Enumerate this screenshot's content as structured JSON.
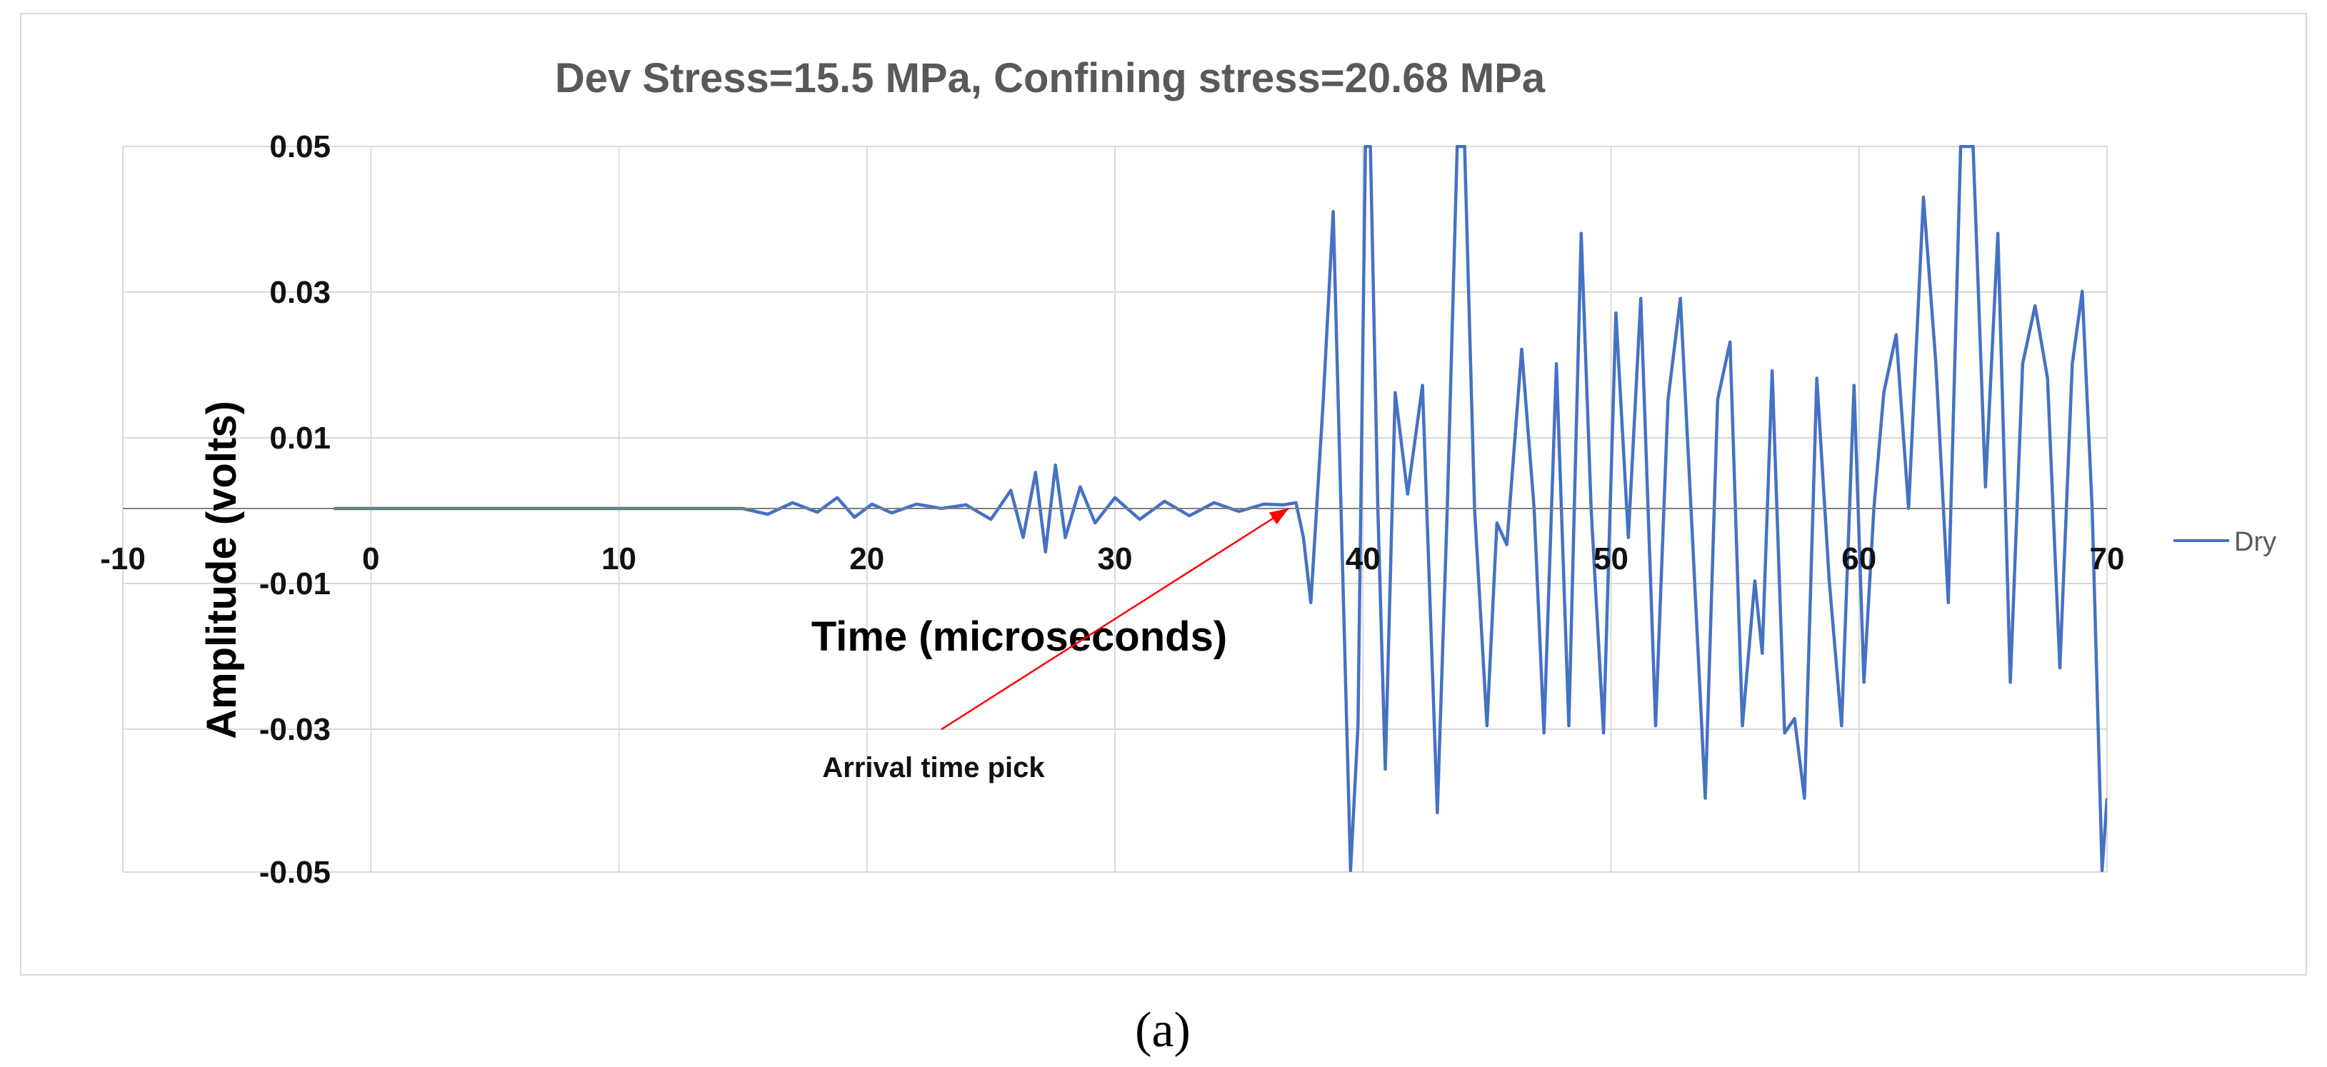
{
  "chart_data": {
    "type": "line",
    "title": "Dev Stress=15.5 MPa, Confining stress=20.68 MPa",
    "xlabel": "Time (microseconds)",
    "ylabel": "Amplitude (volts)",
    "xlim": [
      -10,
      70
    ],
    "ylim": [
      -0.05,
      0.05
    ],
    "x_ticks": [
      -10,
      0,
      10,
      20,
      30,
      40,
      50,
      60,
      70
    ],
    "x_tick_labels": [
      "-10",
      "0",
      "10",
      "20",
      "30",
      "40",
      "50",
      "60",
      "70"
    ],
    "y_ticks": [
      0.05,
      0.03,
      0.01,
      -0.01,
      -0.03,
      -0.05
    ],
    "y_tick_labels": [
      "0.05",
      "0.03",
      "0.01",
      "-0.01",
      "-0.03",
      "-0.05"
    ],
    "grid": true,
    "legend_position": "right",
    "series": [
      {
        "name": "Dry",
        "color": "#4472C4",
        "points": [
          [
            -1.5,
            0.0
          ],
          [
            15.0,
            0.0
          ],
          [
            16.0,
            -0.0008
          ],
          [
            17.0,
            0.0008
          ],
          [
            18.0,
            -0.0005
          ],
          [
            18.8,
            0.0015
          ],
          [
            19.5,
            -0.0012
          ],
          [
            20.2,
            0.0006
          ],
          [
            21.0,
            -0.0006
          ],
          [
            22.0,
            0.0006
          ],
          [
            23.0,
            0.0
          ],
          [
            24.0,
            0.0005
          ],
          [
            25.0,
            -0.0015
          ],
          [
            25.8,
            0.0025
          ],
          [
            26.3,
            -0.004
          ],
          [
            26.8,
            0.005
          ],
          [
            27.2,
            -0.006
          ],
          [
            27.6,
            0.006
          ],
          [
            28.0,
            -0.004
          ],
          [
            28.6,
            0.003
          ],
          [
            29.2,
            -0.002
          ],
          [
            30.0,
            0.0015
          ],
          [
            31.0,
            -0.0015
          ],
          [
            32.0,
            0.001
          ],
          [
            33.0,
            -0.001
          ],
          [
            34.0,
            0.0008
          ],
          [
            35.0,
            -0.0004
          ],
          [
            36.0,
            0.0006
          ],
          [
            36.8,
            0.0005
          ],
          [
            37.3,
            0.0008
          ],
          [
            37.6,
            -0.004
          ],
          [
            37.9,
            -0.013
          ],
          [
            38.4,
            0.015
          ],
          [
            38.8,
            0.041
          ],
          [
            39.1,
            0.002
          ],
          [
            39.5,
            -0.05
          ],
          [
            39.8,
            -0.03
          ],
          [
            40.1,
            0.05
          ],
          [
            40.3,
            0.05
          ],
          [
            40.6,
            0.0
          ],
          [
            40.9,
            -0.036
          ],
          [
            41.3,
            0.016
          ],
          [
            41.8,
            0.002
          ],
          [
            42.4,
            0.017
          ],
          [
            43.0,
            -0.042
          ],
          [
            43.4,
            0.0
          ],
          [
            43.8,
            0.05
          ],
          [
            44.1,
            0.05
          ],
          [
            44.5,
            0.0
          ],
          [
            45.0,
            -0.03
          ],
          [
            45.4,
            -0.002
          ],
          [
            45.8,
            -0.005
          ],
          [
            46.4,
            0.022
          ],
          [
            46.9,
            0.0
          ],
          [
            47.3,
            -0.031
          ],
          [
            47.8,
            0.02
          ],
          [
            48.3,
            -0.03
          ],
          [
            48.8,
            0.038
          ],
          [
            49.2,
            0.0
          ],
          [
            49.7,
            -0.031
          ],
          [
            50.2,
            0.027
          ],
          [
            50.7,
            -0.004
          ],
          [
            51.2,
            0.029
          ],
          [
            51.8,
            -0.03
          ],
          [
            52.3,
            0.015
          ],
          [
            52.8,
            0.029
          ],
          [
            53.3,
            -0.005
          ],
          [
            53.8,
            -0.04
          ],
          [
            54.3,
            0.015
          ],
          [
            54.8,
            0.023
          ],
          [
            55.3,
            -0.03
          ],
          [
            55.8,
            -0.01
          ],
          [
            56.1,
            -0.02
          ],
          [
            56.5,
            0.019
          ],
          [
            57.0,
            -0.031
          ],
          [
            57.4,
            -0.029
          ],
          [
            57.8,
            -0.04
          ],
          [
            58.3,
            0.018
          ],
          [
            58.8,
            -0.01
          ],
          [
            59.3,
            -0.03
          ],
          [
            59.8,
            0.017
          ],
          [
            60.2,
            -0.024
          ],
          [
            60.6,
            0.0
          ],
          [
            61.0,
            0.016
          ],
          [
            61.5,
            0.024
          ],
          [
            62.0,
            0.0
          ],
          [
            62.6,
            0.043
          ],
          [
            63.1,
            0.02
          ],
          [
            63.6,
            -0.013
          ],
          [
            64.1,
            0.05
          ],
          [
            64.6,
            0.05
          ],
          [
            65.1,
            0.003
          ],
          [
            65.6,
            0.038
          ],
          [
            66.1,
            -0.024
          ],
          [
            66.6,
            0.02
          ],
          [
            67.1,
            0.028
          ],
          [
            67.6,
            0.018
          ],
          [
            68.1,
            -0.022
          ],
          [
            68.6,
            0.02
          ],
          [
            69.0,
            0.03
          ],
          [
            69.4,
            0.0
          ],
          [
            69.8,
            -0.05
          ],
          [
            70.0,
            -0.04
          ]
        ]
      }
    ],
    "annotations": [
      {
        "text": "Arrival time pick",
        "arrow_from": [
          23.0,
          -0.0305
        ],
        "arrow_to": [
          37.0,
          0.0
        ]
      }
    ]
  },
  "caption": "(a)"
}
